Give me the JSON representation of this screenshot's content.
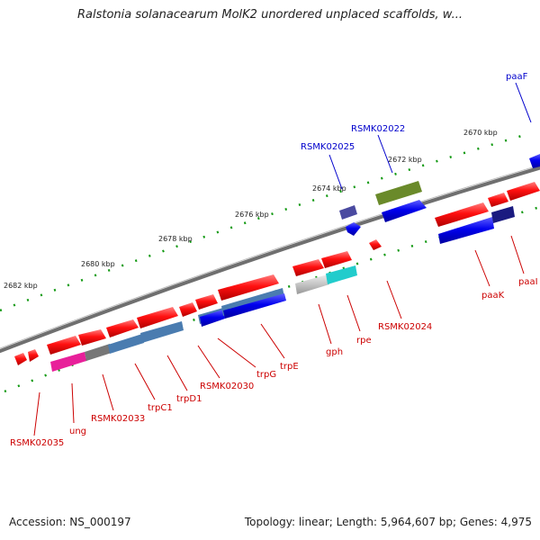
{
  "title": "Ralstonia solanacearum MolK2 unordered unplaced scaffolds, w...",
  "footer": {
    "accession": "Accession: NS_000197",
    "summary": "Topology: linear; Length: 5,964,607 bp; Genes: 4,975"
  },
  "scale_labels": [
    "2682 kbp",
    "2680 kbp",
    "2678 kbp",
    "2676 kbp",
    "2674 kbp",
    "2672 kbp",
    "2670 kbp"
  ],
  "gene_labels_below": [
    "RSMK02035",
    "ung",
    "RSMK02033",
    "trpC1",
    "trpD1",
    "RSMK02030",
    "trpG",
    "trpE",
    "gph",
    "rpe",
    "RSMK02024",
    "paaK",
    "paaI"
  ],
  "gene_labels_above": [
    "RSMK02025",
    "RSMK02022",
    "paaF"
  ],
  "colors": {
    "forward_gene": "#ff0000",
    "reverse_gene": "#0000ff",
    "backbone": "#777777",
    "tick": "#119911",
    "label_red": "#cc0000",
    "label_blue": "#0000cc"
  }
}
